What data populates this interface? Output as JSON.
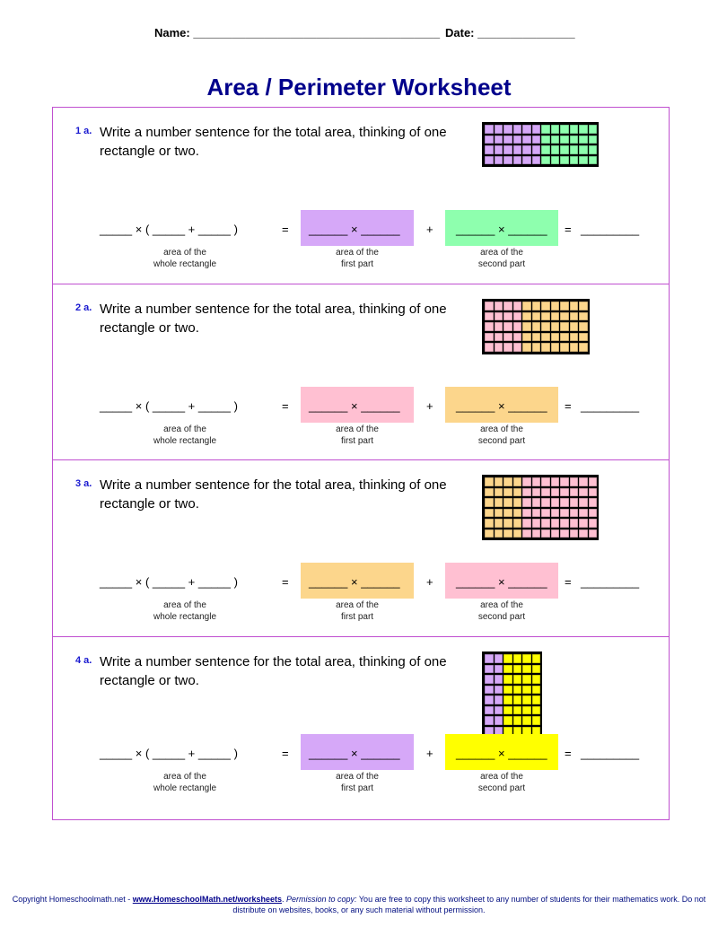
{
  "header": {
    "name_label": "Name:",
    "name_blank": "______________________________________",
    "date_label": "Date:",
    "date_blank": "_______________"
  },
  "title": "Area / Perimeter Worksheet",
  "equation": {
    "whole": "_____ × ( _____ + _____ )",
    "equals": "=",
    "part": "______ × ______",
    "plus": "+",
    "answer": "_________",
    "cap_whole": [
      "area of the",
      "whole rectangle"
    ],
    "cap_first": [
      "area of the",
      "first part"
    ],
    "cap_second": [
      "area of the",
      "second part"
    ]
  },
  "colors": {
    "purple": "#d6a8f8",
    "green": "#8effae",
    "pink": "#ffc0d2",
    "orange": "#fcd68c",
    "yellow": "#ffff00",
    "border": "#c050d0",
    "title": "#00008b"
  },
  "problems": [
    {
      "number": "1 a.",
      "question": "Write a number sentence for the total area, thinking of one rectangle or two.",
      "grid": {
        "rows": 4,
        "first_cols": 6,
        "second_cols": 6,
        "first_color": "purple",
        "second_color": "green"
      }
    },
    {
      "number": "2 a.",
      "question": "Write a number sentence for the total area, thinking of one rectangle or two.",
      "grid": {
        "rows": 5,
        "first_cols": 4,
        "second_cols": 7,
        "first_color": "pink",
        "second_color": "orange"
      }
    },
    {
      "number": "3 a.",
      "question": "Write a number sentence for the total area, thinking of one rectangle or two.",
      "grid": {
        "rows": 6,
        "first_cols": 4,
        "second_cols": 8,
        "first_color": "orange",
        "second_color": "pink"
      }
    },
    {
      "number": "4 a.",
      "question": "Write a number sentence for the total area, thinking of one rectangle or two.",
      "grid": {
        "rows": 8,
        "first_cols": 2,
        "second_cols": 4,
        "first_color": "purple",
        "second_color": "yellow"
      }
    }
  ],
  "footer": {
    "copyright": "Copyright Homeschoolmath.net - ",
    "link": "www.HomeschoolMath.net/worksheets",
    "after_link": ".  ",
    "permission_label": "Permission to copy:",
    "permission_text": " You are free to copy this worksheet to any number of students for their mathematics work. Do not distribute on websites, books, or any such material without permission."
  }
}
